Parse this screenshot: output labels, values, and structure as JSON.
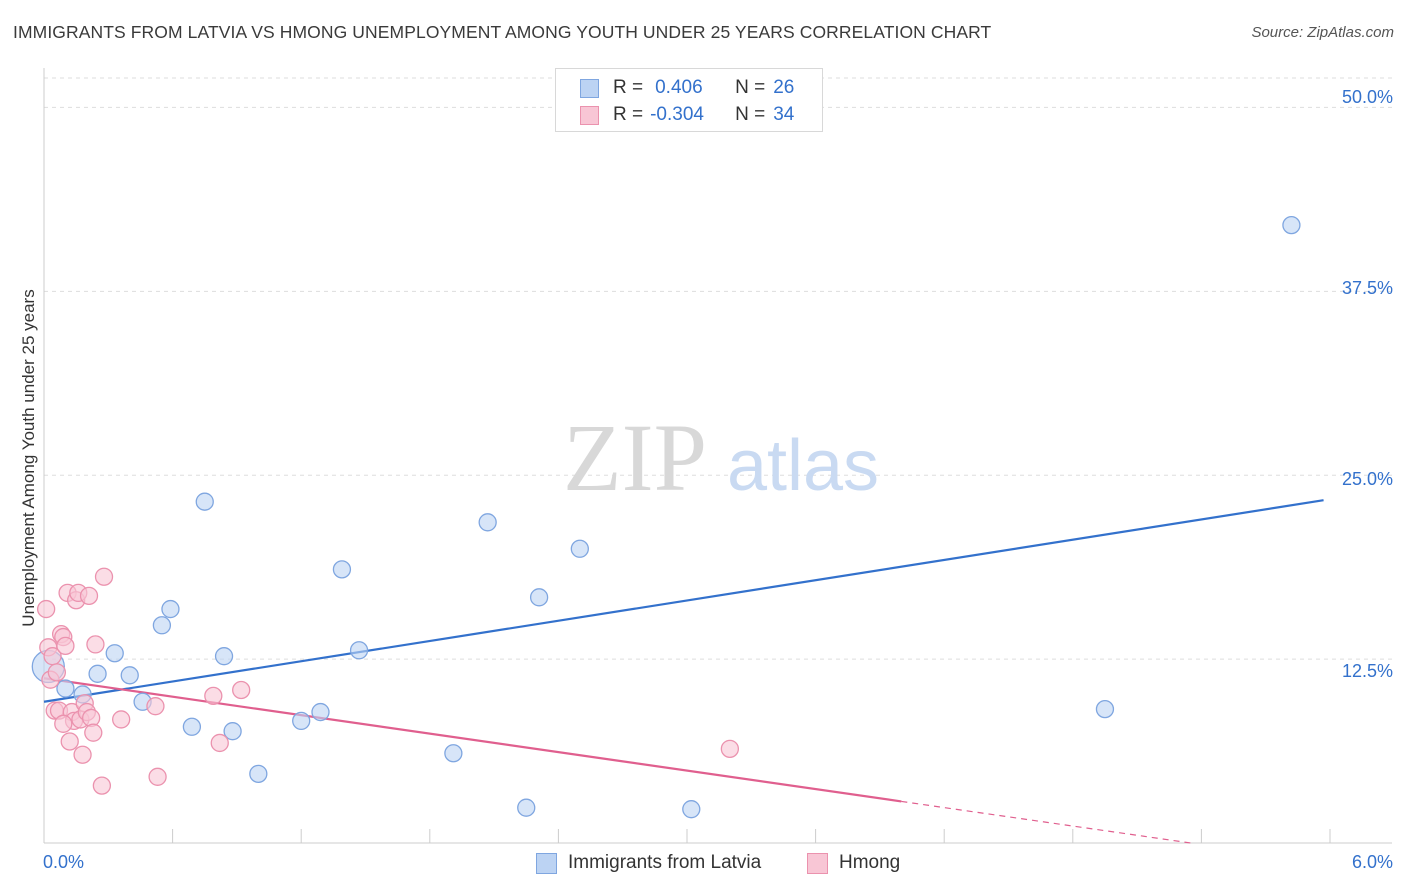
{
  "title": "IMMIGRANTS FROM LATVIA VS HMONG UNEMPLOYMENT AMONG YOUTH UNDER 25 YEARS CORRELATION CHART",
  "source": "Source: ZipAtlas.com",
  "watermark": {
    "zip": "ZIP",
    "atlas": "atlas"
  },
  "legend": {
    "rows": [
      {
        "r_label": "R =",
        "r_value": "0.406",
        "n_label": "N =",
        "n_value": "26"
      },
      {
        "r_label": "R =",
        "r_value": "-0.304",
        "n_label": "N =",
        "n_value": "34"
      }
    ]
  },
  "colors": {
    "series1": "#3371cc",
    "series1_fill": "#bcd3f3",
    "series2": "#e05f8e",
    "series2_fill": "#f8c6d5",
    "accent_text": "#3371cc",
    "grid": "#dddddd"
  },
  "chart_data": {
    "type": "scatter",
    "title": "IMMIGRANTS FROM LATVIA VS HMONG UNEMPLOYMENT AMONG YOUTH UNDER 25 YEARS CORRELATION CHART",
    "xlabel": "",
    "ylabel": "Unemployment Among Youth under 25 years",
    "xlim": [
      0,
      6.0
    ],
    "ylim": [
      0,
      52.0
    ],
    "x_tick_labels": {
      "min": "0.0%",
      "max": "6.0%"
    },
    "y_ticks": [
      {
        "value": 12.5,
        "label": "12.5%"
      },
      {
        "value": 25.0,
        "label": "25.0%"
      },
      {
        "value": 37.5,
        "label": "37.5%"
      },
      {
        "value": 50.0,
        "label": "50.0%"
      }
    ],
    "grid": true,
    "series": [
      {
        "name": "Immigrants from Latvia",
        "color": "#3371cc",
        "fill": "#bcd3f3",
        "stroke": "#7fa6e0",
        "points": [
          {
            "x": 0.02,
            "y": 12.0,
            "big": true
          },
          {
            "x": 0.1,
            "y": 10.5
          },
          {
            "x": 0.18,
            "y": 10.1
          },
          {
            "x": 0.25,
            "y": 11.5
          },
          {
            "x": 0.33,
            "y": 12.9
          },
          {
            "x": 0.4,
            "y": 11.4
          },
          {
            "x": 0.46,
            "y": 9.6
          },
          {
            "x": 0.55,
            "y": 14.8
          },
          {
            "x": 0.59,
            "y": 15.9
          },
          {
            "x": 0.69,
            "y": 7.9
          },
          {
            "x": 0.75,
            "y": 23.2
          },
          {
            "x": 0.84,
            "y": 12.7
          },
          {
            "x": 0.88,
            "y": 7.6
          },
          {
            "x": 1.0,
            "y": 4.7
          },
          {
            "x": 1.2,
            "y": 8.3
          },
          {
            "x": 1.29,
            "y": 8.9
          },
          {
            "x": 1.39,
            "y": 18.6
          },
          {
            "x": 1.47,
            "y": 13.1
          },
          {
            "x": 1.91,
            "y": 6.1
          },
          {
            "x": 2.07,
            "y": 21.8
          },
          {
            "x": 2.25,
            "y": 2.4
          },
          {
            "x": 2.31,
            "y": 16.7
          },
          {
            "x": 2.5,
            "y": 20.0
          },
          {
            "x": 3.02,
            "y": 2.3
          },
          {
            "x": 4.95,
            "y": 9.1
          },
          {
            "x": 5.82,
            "y": 42.0
          }
        ],
        "trend": {
          "x1": 0.0,
          "y1": 9.6,
          "x2": 5.97,
          "y2": 23.3,
          "dashed_from": null
        }
      },
      {
        "name": "Hmong",
        "color": "#e05f8e",
        "fill": "#f8c6d5",
        "stroke": "#eb92ae",
        "points": [
          {
            "x": 0.01,
            "y": 15.9
          },
          {
            "x": 0.02,
            "y": 13.3
          },
          {
            "x": 0.03,
            "y": 11.1
          },
          {
            "x": 0.04,
            "y": 12.7
          },
          {
            "x": 0.05,
            "y": 9.0
          },
          {
            "x": 0.06,
            "y": 11.6
          },
          {
            "x": 0.07,
            "y": 9.0
          },
          {
            "x": 0.08,
            "y": 14.2
          },
          {
            "x": 0.09,
            "y": 14.0
          },
          {
            "x": 0.1,
            "y": 13.4
          },
          {
            "x": 0.11,
            "y": 17.0
          },
          {
            "x": 0.12,
            "y": 6.9
          },
          {
            "x": 0.13,
            "y": 8.9
          },
          {
            "x": 0.14,
            "y": 8.3
          },
          {
            "x": 0.15,
            "y": 16.5
          },
          {
            "x": 0.16,
            "y": 17.0
          },
          {
            "x": 0.17,
            "y": 8.4
          },
          {
            "x": 0.18,
            "y": 6.0
          },
          {
            "x": 0.19,
            "y": 9.5
          },
          {
            "x": 0.2,
            "y": 8.9
          },
          {
            "x": 0.21,
            "y": 16.8
          },
          {
            "x": 0.22,
            "y": 8.5
          },
          {
            "x": 0.23,
            "y": 7.5
          },
          {
            "x": 0.24,
            "y": 13.5
          },
          {
            "x": 0.09,
            "y": 8.1
          },
          {
            "x": 0.27,
            "y": 3.9
          },
          {
            "x": 0.28,
            "y": 18.1
          },
          {
            "x": 0.36,
            "y": 8.4
          },
          {
            "x": 0.52,
            "y": 9.3
          },
          {
            "x": 0.53,
            "y": 4.5
          },
          {
            "x": 0.79,
            "y": 10.0
          },
          {
            "x": 0.82,
            "y": 6.8
          },
          {
            "x": 0.92,
            "y": 10.4
          },
          {
            "x": 3.2,
            "y": 6.4
          }
        ],
        "trend": {
          "x1": 0.0,
          "y1": 11.2,
          "x2": 5.35,
          "y2": 0.0,
          "dashed_from": 4.0
        }
      }
    ]
  },
  "bottom_legend": {
    "items": [
      "Immigrants from Latvia",
      "Hmong"
    ]
  }
}
